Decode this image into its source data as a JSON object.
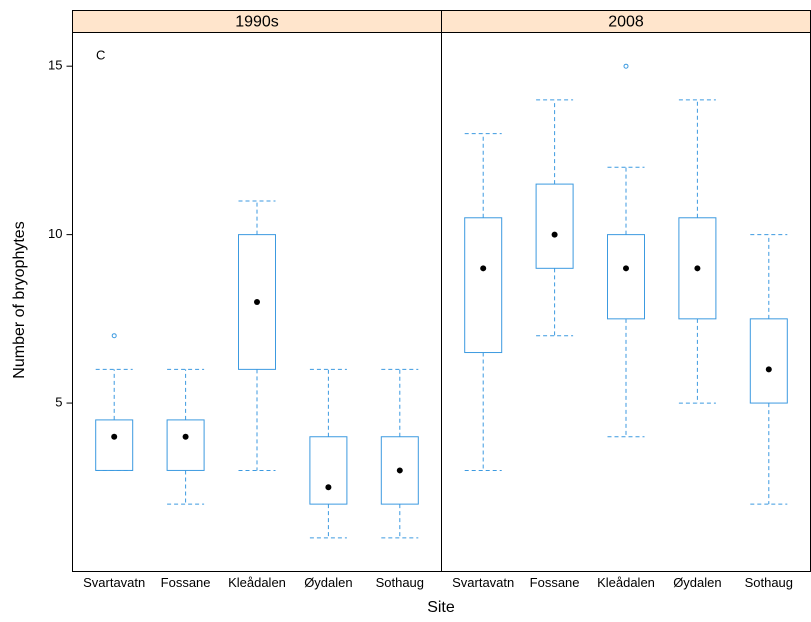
{
  "chart_data": {
    "type": "box",
    "annotation": "C",
    "y_label": "Number of bryophytes",
    "x_label": "Site",
    "ylim": [
      0,
      16
    ],
    "yticks": [
      5,
      10,
      15
    ],
    "color": "#3c9ae0",
    "median_color": "#000000",
    "strip_color": "#ffe5cc",
    "panels": [
      {
        "name": "1990s",
        "categories": [
          "Svartavatn",
          "Fossane",
          "Kleådalen",
          "Øydalen",
          "Sothaug"
        ],
        "boxes": [
          {
            "min": 3,
            "q1": 3,
            "median": 4,
            "q3": 4.5,
            "max": 6,
            "outliers": [
              7
            ]
          },
          {
            "min": 2,
            "q1": 3,
            "median": 4,
            "q3": 4.5,
            "max": 6,
            "outliers": []
          },
          {
            "min": 3,
            "q1": 6,
            "median": 8,
            "q3": 10,
            "max": 11,
            "outliers": []
          },
          {
            "min": 1,
            "q1": 2,
            "median": 2.5,
            "q3": 4,
            "max": 6,
            "outliers": []
          },
          {
            "min": 1,
            "q1": 2,
            "median": 3,
            "q3": 4,
            "max": 6,
            "outliers": []
          }
        ]
      },
      {
        "name": "2008",
        "categories": [
          "Svartavatn",
          "Fossane",
          "Kleådalen",
          "Øydalen",
          "Sothaug"
        ],
        "boxes": [
          {
            "min": 3,
            "q1": 6.5,
            "median": 9,
            "q3": 10.5,
            "max": 13,
            "outliers": []
          },
          {
            "min": 7,
            "q1": 9,
            "median": 10,
            "q3": 11.5,
            "max": 14,
            "outliers": []
          },
          {
            "min": 4,
            "q1": 7.5,
            "median": 9,
            "q3": 10,
            "max": 12,
            "outliers": [
              15
            ]
          },
          {
            "min": 5,
            "q1": 7.5,
            "median": 9,
            "q3": 10.5,
            "max": 14,
            "outliers": []
          },
          {
            "min": 2,
            "q1": 5,
            "median": 6,
            "q3": 7.5,
            "max": 10,
            "outliers": []
          }
        ]
      }
    ]
  }
}
